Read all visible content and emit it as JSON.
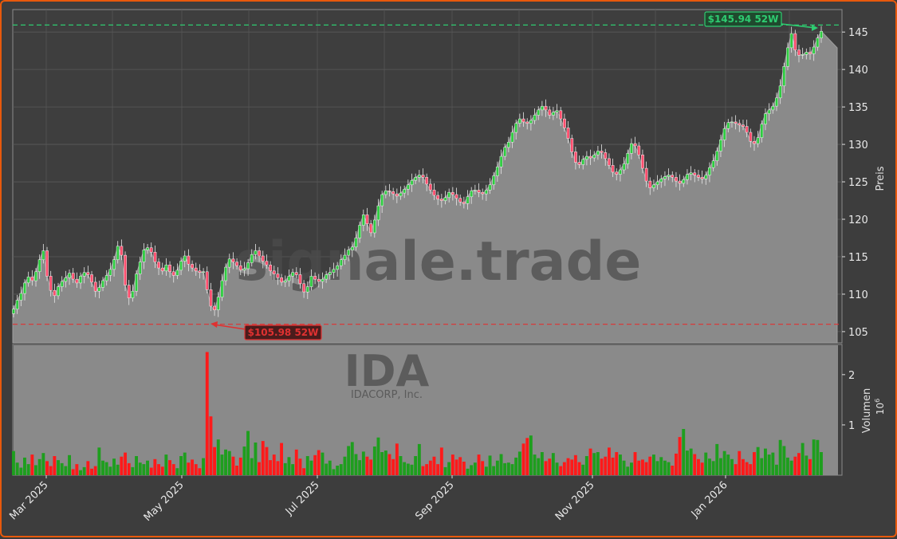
{
  "chart_data": {
    "type": "candlestick",
    "watermark": {
      "main": "signale.trade",
      "ticker": "IDA",
      "company": "IDACORP, Inc."
    },
    "price_axis": {
      "label": "Preis",
      "ylim": [
        103.5,
        148
      ],
      "ticks": [
        "105",
        "110",
        "115",
        "120",
        "125",
        "130",
        "135",
        "140",
        "145"
      ]
    },
    "volume_axis": {
      "label": "Volumen",
      "unit": "10",
      "exponent": "6",
      "ylim": [
        0,
        2.6
      ],
      "ticks": [
        "1",
        "2"
      ]
    },
    "x_ticks": [
      "Mar 2025",
      "May 2025",
      "Jul 2025",
      "Sep 2025",
      "Nov 2025",
      "Jan 2026"
    ],
    "annotations": {
      "high": {
        "text": "$145.94 52W",
        "value": 145.94,
        "color": "#2ecc71"
      },
      "low": {
        "text": "$105.98 52W",
        "value": 105.98,
        "color": "#e03131"
      }
    },
    "series_close": [
      108.0,
      109.2,
      110.1,
      111.5,
      112.3,
      111.8,
      113.0,
      114.6,
      115.8,
      112.4,
      110.5,
      109.8,
      111.0,
      111.7,
      112.2,
      112.8,
      112.0,
      111.5,
      112.4,
      112.9,
      112.6,
      111.6,
      110.4,
      110.9,
      111.8,
      112.5,
      113.3,
      114.6,
      116.4,
      115.2,
      111.2,
      109.5,
      110.4,
      112.7,
      114.3,
      115.9,
      116.2,
      115.6,
      114.3,
      113.5,
      113.1,
      113.9,
      113.0,
      112.5,
      113.2,
      114.4,
      115.1,
      114.0,
      113.5,
      113.1,
      112.9,
      113.0,
      110.6,
      108.4,
      107.9,
      109.6,
      111.8,
      113.6,
      114.7,
      114.3,
      113.8,
      113.2,
      113.4,
      114.2,
      115.3,
      115.8,
      115.1,
      114.4,
      113.9,
      113.1,
      112.7,
      112.2,
      111.6,
      111.8,
      112.4,
      112.9,
      112.6,
      111.4,
      110.3,
      111.0,
      112.4,
      112.0,
      111.7,
      112.0,
      112.6,
      112.9,
      113.3,
      113.8,
      114.6,
      115.2,
      115.9,
      116.3,
      117.5,
      119.2,
      120.6,
      119.4,
      118.2,
      119.9,
      121.8,
      123.3,
      123.8,
      123.7,
      123.4,
      123.1,
      123.5,
      124.0,
      124.6,
      125.2,
      125.6,
      125.9,
      125.6,
      124.7,
      123.9,
      123.2,
      122.7,
      122.5,
      122.9,
      123.6,
      123.3,
      122.8,
      122.3,
      122.1,
      123.0,
      123.8,
      123.9,
      123.6,
      123.4,
      123.9,
      124.6,
      125.8,
      127.0,
      128.4,
      129.6,
      130.3,
      131.6,
      132.8,
      133.4,
      133.0,
      132.8,
      133.2,
      133.9,
      134.6,
      135.1,
      134.6,
      133.9,
      134.3,
      134.5,
      133.4,
      132.2,
      130.8,
      129.0,
      127.6,
      127.3,
      128.0,
      128.4,
      128.2,
      128.6,
      129.1,
      128.9,
      128.1,
      127.2,
      126.3,
      126.0,
      126.6,
      127.4,
      128.8,
      130.1,
      129.8,
      128.6,
      126.8,
      125.1,
      124.2,
      124.6,
      125.0,
      125.4,
      125.7,
      125.9,
      125.6,
      125.1,
      124.8,
      125.3,
      126.0,
      126.2,
      125.9,
      125.6,
      125.4,
      125.9,
      126.9,
      127.8,
      129.1,
      130.6,
      132.1,
      132.9,
      133.0,
      132.8,
      132.6,
      132.4,
      131.6,
      130.4,
      130.1,
      130.9,
      132.7,
      134.1,
      134.6,
      135.1,
      136.2,
      137.8,
      140.4,
      142.9,
      144.8,
      142.6,
      141.9,
      142.0,
      142.3,
      142.1,
      143.0,
      144.2,
      145.1
    ],
    "volume_millions": [
      0.48,
      0.25,
      0.15,
      0.35,
      0.22,
      0.41,
      0.2,
      0.32,
      0.44,
      0.28,
      0.18,
      0.38,
      0.3,
      0.24,
      0.18,
      0.4,
      0.12,
      0.22,
      0.1,
      0.16,
      0.28,
      0.13,
      0.18,
      0.55,
      0.29,
      0.26,
      0.17,
      0.33,
      0.21,
      0.37,
      0.45,
      0.24,
      0.16,
      0.38,
      0.25,
      0.22,
      0.29,
      0.15,
      0.32,
      0.22,
      0.17,
      0.41,
      0.3,
      0.22,
      0.14,
      0.38,
      0.45,
      0.25,
      0.31,
      0.22,
      0.14,
      0.34,
      2.45,
      1.17,
      0.56,
      0.71,
      0.41,
      0.51,
      0.48,
      0.37,
      0.19,
      0.35,
      0.57,
      0.88,
      0.34,
      0.65,
      0.26,
      0.68,
      0.56,
      0.3,
      0.41,
      0.28,
      0.64,
      0.24,
      0.36,
      0.22,
      0.51,
      0.33,
      0.14,
      0.38,
      0.29,
      0.4,
      0.5,
      0.45,
      0.23,
      0.29,
      0.12,
      0.19,
      0.22,
      0.37,
      0.58,
      0.66,
      0.42,
      0.3,
      0.47,
      0.37,
      0.31,
      0.57,
      0.75,
      0.46,
      0.49,
      0.42,
      0.32,
      0.63,
      0.38,
      0.26,
      0.23,
      0.21,
      0.38,
      0.62,
      0.18,
      0.22,
      0.29,
      0.37,
      0.22,
      0.55,
      0.16,
      0.26,
      0.41,
      0.31,
      0.36,
      0.27,
      0.13,
      0.2,
      0.25,
      0.41,
      0.28,
      0.17,
      0.39,
      0.18,
      0.29,
      0.42,
      0.24,
      0.25,
      0.22,
      0.35,
      0.47,
      0.63,
      0.74,
      0.79,
      0.41,
      0.34,
      0.46,
      0.28,
      0.33,
      0.44,
      0.25,
      0.18,
      0.26,
      0.34,
      0.31,
      0.4,
      0.26,
      0.21,
      0.38,
      0.53,
      0.44,
      0.46,
      0.33,
      0.37,
      0.55,
      0.35,
      0.46,
      0.41,
      0.29,
      0.17,
      0.25,
      0.46,
      0.29,
      0.31,
      0.26,
      0.37,
      0.41,
      0.28,
      0.36,
      0.29,
      0.26,
      0.19,
      0.43,
      0.76,
      0.92,
      0.49,
      0.53,
      0.42,
      0.32,
      0.25,
      0.45,
      0.33,
      0.28,
      0.62,
      0.34,
      0.48,
      0.41,
      0.32,
      0.22,
      0.48,
      0.32,
      0.26,
      0.22,
      0.46,
      0.56,
      0.34,
      0.53,
      0.41,
      0.45,
      0.21,
      0.7,
      0.58,
      0.35,
      0.29,
      0.37,
      0.44,
      0.64,
      0.39,
      0.32,
      0.71,
      0.7,
      0.46
    ]
  }
}
